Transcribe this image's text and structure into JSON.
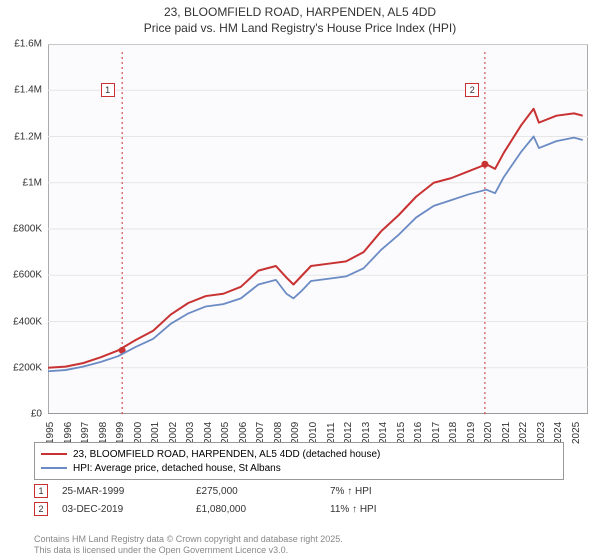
{
  "title_line1": "23, BLOOMFIELD ROAD, HARPENDEN, AL5 4DD",
  "title_line2": "Price paid vs. HM Land Registry's House Price Index (HPI)",
  "chart": {
    "type": "line",
    "background_color": "#fbfafd",
    "grid_color": "#e6e6e6",
    "axis_color": "#888888",
    "x_years": [
      "1995",
      "1996",
      "1997",
      "1998",
      "1999",
      "2000",
      "2001",
      "2002",
      "2003",
      "2004",
      "2005",
      "2006",
      "2007",
      "2008",
      "2009",
      "2010",
      "2011",
      "2012",
      "2013",
      "2014",
      "2015",
      "2016",
      "2017",
      "2018",
      "2019",
      "2020",
      "2021",
      "2022",
      "2023",
      "2024",
      "2025"
    ],
    "y_ticks": [
      0,
      200000,
      400000,
      600000,
      800000,
      1000000,
      1200000,
      1400000,
      1600000
    ],
    "y_tick_labels": [
      "£0",
      "£200K",
      "£400K",
      "£600K",
      "£800K",
      "£1M",
      "£1.2M",
      "£1.4M",
      "£1.6M"
    ],
    "ylim": [
      0,
      1600000
    ],
    "xlim": [
      1995,
      2025.8
    ],
    "series": [
      {
        "name": "23, BLOOMFIELD ROAD, HARPENDEN, AL5 4DD (detached house)",
        "color": "#c83232",
        "width": 2,
        "points": [
          [
            1995,
            200000
          ],
          [
            1996,
            205000
          ],
          [
            1997,
            220000
          ],
          [
            1998,
            245000
          ],
          [
            1999,
            275000
          ],
          [
            2000,
            320000
          ],
          [
            2001,
            360000
          ],
          [
            2002,
            430000
          ],
          [
            2003,
            480000
          ],
          [
            2004,
            510000
          ],
          [
            2005,
            520000
          ],
          [
            2006,
            550000
          ],
          [
            2007,
            620000
          ],
          [
            2008,
            640000
          ],
          [
            2008.6,
            590000
          ],
          [
            2009,
            560000
          ],
          [
            2009.5,
            600000
          ],
          [
            2010,
            640000
          ],
          [
            2011,
            650000
          ],
          [
            2012,
            660000
          ],
          [
            2013,
            700000
          ],
          [
            2014,
            790000
          ],
          [
            2015,
            860000
          ],
          [
            2016,
            940000
          ],
          [
            2017,
            1000000
          ],
          [
            2018,
            1020000
          ],
          [
            2019,
            1050000
          ],
          [
            2020,
            1080000
          ],
          [
            2020.5,
            1060000
          ],
          [
            2021,
            1130000
          ],
          [
            2022,
            1250000
          ],
          [
            2022.7,
            1320000
          ],
          [
            2023,
            1260000
          ],
          [
            2024,
            1290000
          ],
          [
            2025,
            1300000
          ],
          [
            2025.5,
            1290000
          ]
        ]
      },
      {
        "name": "HPI: Average price, detached house, St Albans",
        "color": "#6b8bc4",
        "width": 1.8,
        "points": [
          [
            1995,
            185000
          ],
          [
            1996,
            190000
          ],
          [
            1997,
            205000
          ],
          [
            1998,
            225000
          ],
          [
            1999,
            250000
          ],
          [
            2000,
            290000
          ],
          [
            2001,
            325000
          ],
          [
            2002,
            390000
          ],
          [
            2003,
            435000
          ],
          [
            2004,
            465000
          ],
          [
            2005,
            475000
          ],
          [
            2006,
            500000
          ],
          [
            2007,
            560000
          ],
          [
            2008,
            580000
          ],
          [
            2008.6,
            520000
          ],
          [
            2009,
            500000
          ],
          [
            2009.5,
            535000
          ],
          [
            2010,
            575000
          ],
          [
            2011,
            585000
          ],
          [
            2012,
            595000
          ],
          [
            2013,
            630000
          ],
          [
            2014,
            710000
          ],
          [
            2015,
            775000
          ],
          [
            2016,
            850000
          ],
          [
            2017,
            900000
          ],
          [
            2018,
            925000
          ],
          [
            2019,
            950000
          ],
          [
            2020,
            970000
          ],
          [
            2020.5,
            955000
          ],
          [
            2021,
            1025000
          ],
          [
            2022,
            1135000
          ],
          [
            2022.7,
            1200000
          ],
          [
            2023,
            1150000
          ],
          [
            2024,
            1180000
          ],
          [
            2025,
            1195000
          ],
          [
            2025.5,
            1185000
          ]
        ]
      }
    ],
    "markers": [
      {
        "num": "1",
        "x": 1999.23,
        "y": 275000,
        "color": "#c83232",
        "label_x": 1998.4,
        "label_y": 1400000
      },
      {
        "num": "2",
        "x": 2019.92,
        "y": 1080000,
        "color": "#c83232",
        "label_x": 2019.2,
        "label_y": 1400000
      }
    ],
    "marker_lines_color": "#c83232",
    "marker_lines_dash": "2,3"
  },
  "legend": {
    "items": [
      {
        "color": "#c83232",
        "label": "23, BLOOMFIELD ROAD, HARPENDEN, AL5 4DD (detached house)"
      },
      {
        "color": "#6b8bc4",
        "label": "HPI: Average price, detached house, St Albans"
      }
    ]
  },
  "annotations": [
    {
      "num": "1",
      "color": "#c83232",
      "date": "25-MAR-1999",
      "price": "£275,000",
      "pct": "7% ↑ HPI"
    },
    {
      "num": "2",
      "color": "#c83232",
      "date": "03-DEC-2019",
      "price": "£1,080,000",
      "pct": "11% ↑ HPI"
    }
  ],
  "footer_line1": "Contains HM Land Registry data © Crown copyright and database right 2025.",
  "footer_line2": "This data is licensed under the Open Government Licence v3.0."
}
